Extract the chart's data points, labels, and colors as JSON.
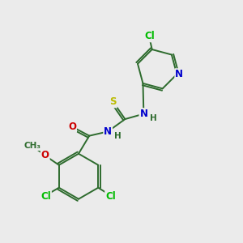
{
  "background_color": "#ebebeb",
  "bond_color": "#2d6b2d",
  "atom_colors": {
    "Cl": "#00bb00",
    "N": "#0000cc",
    "O": "#cc0000",
    "S": "#bbbb00",
    "C": "#2d6b2d",
    "H": "#2d6b2d"
  },
  "font_size": 8.5,
  "linewidth": 1.4
}
